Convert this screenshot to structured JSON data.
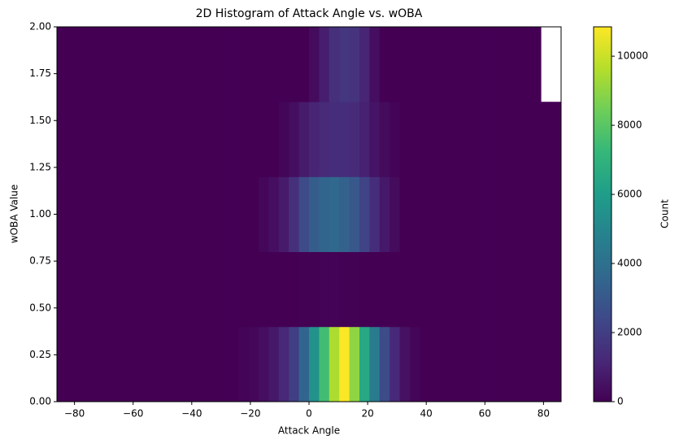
{
  "chart_data": {
    "type": "hist2d",
    "title": "2D Histogram of Attack Angle vs. wOBA",
    "x_label": "Attack Angle",
    "y_label": "wOBA Value",
    "colorbar_label": "Count",
    "colormap": "viridis",
    "xbins": [
      -86,
      -82.56,
      -79.12,
      -75.68,
      -72.24,
      -68.8,
      -65.36,
      -61.92,
      -58.48,
      -55.04,
      -51.6,
      -48.16,
      -44.72,
      -41.28,
      -37.84,
      -34.4,
      -30.96,
      -27.52,
      -24.08,
      -20.64,
      -17.2,
      -13.76,
      -10.32,
      -6.88,
      -3.44,
      0,
      3.44,
      6.88,
      10.32,
      13.76,
      17.2,
      20.64,
      24.08,
      27.52,
      30.96,
      34.4,
      37.84,
      41.28,
      44.72,
      48.16,
      51.6,
      55.04,
      58.48,
      61.92,
      65.36,
      68.8,
      72.24,
      75.68,
      79.12,
      82.56,
      86
    ],
    "ybins": [
      0,
      0.4,
      0.8,
      1.2,
      1.6,
      2.0
    ],
    "counts": [
      [
        0,
        0,
        0,
        0,
        0,
        0,
        0,
        0,
        0,
        0,
        0,
        0,
        0,
        0,
        0,
        0,
        0,
        0,
        100,
        200,
        400,
        700,
        1200,
        2000,
        3500,
        5500,
        7500,
        9500,
        10800,
        9000,
        6500,
        4500,
        2500,
        1200,
        500,
        150,
        0,
        0,
        0,
        0,
        0,
        0,
        0,
        0,
        0,
        0,
        0,
        0,
        0,
        0
      ],
      [
        0,
        0,
        0,
        0,
        0,
        0,
        0,
        0,
        0,
        0,
        0,
        0,
        0,
        0,
        0,
        0,
        0,
        0,
        0,
        0,
        0,
        0,
        0,
        0,
        20,
        40,
        60,
        60,
        40,
        20,
        0,
        0,
        0,
        0,
        0,
        0,
        0,
        0,
        0,
        0,
        0,
        0,
        0,
        0,
        0,
        0,
        0,
        0,
        0,
        0
      ],
      [
        0,
        0,
        0,
        0,
        0,
        0,
        0,
        0,
        0,
        0,
        0,
        0,
        0,
        0,
        0,
        0,
        0,
        0,
        0,
        0,
        200,
        400,
        800,
        1500,
        2500,
        3200,
        3500,
        3600,
        3400,
        3000,
        2200,
        1400,
        700,
        300,
        0,
        0,
        0,
        0,
        0,
        0,
        0,
        0,
        0,
        0,
        0,
        0,
        0,
        0,
        0,
        0
      ],
      [
        0,
        0,
        0,
        0,
        0,
        0,
        0,
        0,
        0,
        0,
        0,
        0,
        0,
        0,
        0,
        0,
        0,
        0,
        0,
        0,
        0,
        0,
        150,
        400,
        800,
        1100,
        1300,
        1400,
        1400,
        1300,
        1000,
        600,
        300,
        100,
        0,
        0,
        0,
        0,
        0,
        0,
        0,
        0,
        0,
        0,
        0,
        0,
        0,
        0,
        0,
        0
      ],
      [
        0,
        0,
        0,
        0,
        0,
        0,
        0,
        0,
        0,
        0,
        0,
        0,
        0,
        0,
        0,
        0,
        0,
        0,
        0,
        0,
        0,
        0,
        0,
        0,
        0,
        300,
        900,
        1500,
        1700,
        1600,
        1100,
        400,
        0,
        0,
        0,
        0,
        0,
        0,
        0,
        0,
        0,
        0,
        0,
        0,
        0,
        0,
        0,
        0
      ]
    ],
    "xlim": [
      -86,
      86
    ],
    "ylim": [
      0,
      2
    ],
    "xticks": [
      {
        "value": -80,
        "label": "−80"
      },
      {
        "value": -60,
        "label": "−60"
      },
      {
        "value": -40,
        "label": "−40"
      },
      {
        "value": -20,
        "label": "−20"
      },
      0,
      20,
      40,
      60,
      80
    ],
    "yticks": [
      {
        "value": 0,
        "label": "0.00"
      },
      {
        "value": 0.25,
        "label": "0.25"
      },
      {
        "value": 0.5,
        "label": "0.50"
      },
      {
        "value": 0.75,
        "label": "0.75"
      },
      {
        "value": 1,
        "label": "1.00"
      },
      {
        "value": 1.25,
        "label": "1.25"
      },
      {
        "value": 1.5,
        "label": "1.50"
      },
      {
        "value": 1.75,
        "label": "1.75"
      },
      {
        "value": 2,
        "label": "2.00"
      }
    ],
    "clim": [
      0,
      10850
    ],
    "cticks": [
      0,
      2000,
      4000,
      6000,
      8000,
      10000
    ]
  }
}
